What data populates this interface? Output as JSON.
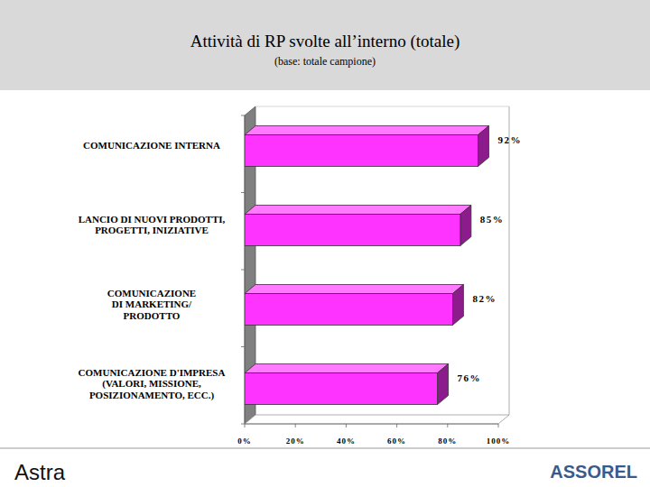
{
  "chart_data": {
    "type": "bar",
    "orientation": "horizontal",
    "title": "Attività di RP svolte all’interno (totale)",
    "subtitle": "(base: totale campione)",
    "categories": [
      "COMUNICAZIONE INTERNA",
      "LANCIO DI NUOVI PRODOTTI,\nPROGETTI, INIZIATIVE",
      "COMUNICAZIONE\nDI MARKETING/\nPRODOTTO",
      "COMUNICAZIONE D'IMPRESA\n(VALORI, MISSIONE,\nPOSIZIONAMENTO, ECC.)"
    ],
    "values": [
      92,
      85,
      82,
      76
    ],
    "value_labels": [
      "92%",
      "85%",
      "82%",
      "76%"
    ],
    "data_labels": true,
    "color": "#ff33ff",
    "xlim": [
      0,
      100
    ],
    "xticks": [
      {
        "value": 0,
        "label": "0%"
      },
      {
        "value": 20,
        "label": "20%"
      },
      {
        "value": 40,
        "label": "40%"
      },
      {
        "value": 60,
        "label": "60%"
      },
      {
        "value": 80,
        "label": "80%"
      },
      {
        "value": 100,
        "label": "100%"
      }
    ],
    "grid": false
  },
  "logos": {
    "left": "Astra",
    "right": "ASSOREL"
  }
}
